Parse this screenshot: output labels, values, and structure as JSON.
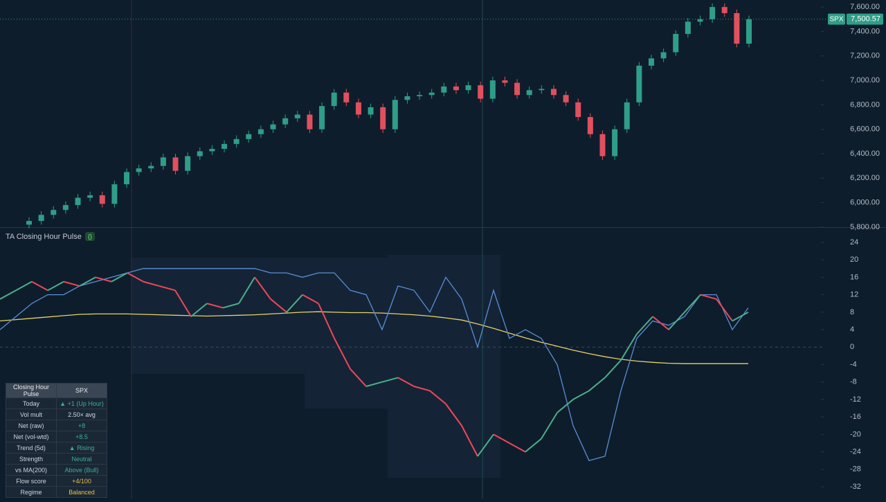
{
  "chart_data": [
    {
      "type": "candlestick",
      "symbol": "SPX",
      "last_price": {
        "value": 7500.57,
        "label": "7,500.57"
      },
      "up_color": "#2f9e88",
      "down_color": "#e0505e",
      "open": [
        5820,
        5850,
        5900,
        5940,
        5980,
        6040,
        6060,
        5990,
        6150,
        6250,
        6280,
        6300,
        6370,
        6260,
        6380,
        6420,
        6440,
        6480,
        6520,
        6560,
        6600,
        6640,
        6690,
        6720,
        6600,
        6790,
        6900,
        6820,
        6720,
        6780,
        6600,
        6840,
        6870,
        6880,
        6900,
        6950,
        6920,
        6960,
        6850,
        7000,
        6980,
        6880,
        6920,
        6930,
        6880,
        6820,
        6700,
        6560,
        6380,
        6600,
        6820,
        7120,
        7180,
        7230,
        7380,
        7480,
        7500,
        7600,
        7550,
        7300
      ],
      "high": [
        5880,
        5930,
        5970,
        6010,
        6070,
        6090,
        6090,
        6180,
        6280,
        6310,
        6330,
        6400,
        6400,
        6410,
        6450,
        6470,
        6510,
        6550,
        6590,
        6630,
        6670,
        6720,
        6750,
        6750,
        6820,
        6930,
        6930,
        6850,
        6810,
        6810,
        6870,
        6900,
        6910,
        6930,
        6980,
        6980,
        6990,
        6990,
        7030,
        7030,
        7010,
        6950,
        6960,
        6960,
        6910,
        6850,
        6730,
        6590,
        6630,
        6850,
        7150,
        7210,
        7260,
        7410,
        7510,
        7530,
        7630,
        7630,
        7580,
        7530
      ],
      "low": [
        5790,
        5820,
        5870,
        5910,
        5950,
        6010,
        5960,
        5960,
        6120,
        6220,
        6250,
        6270,
        6230,
        6230,
        6350,
        6390,
        6410,
        6450,
        6490,
        6530,
        6570,
        6610,
        6660,
        6570,
        6570,
        6760,
        6790,
        6690,
        6690,
        6570,
        6570,
        6810,
        6840,
        6850,
        6870,
        6890,
        6890,
        6820,
        6820,
        6950,
        6850,
        6850,
        6890,
        6850,
        6790,
        6670,
        6530,
        6350,
        6350,
        6570,
        6790,
        7090,
        7150,
        7200,
        7350,
        7450,
        7470,
        7520,
        7270,
        7270
      ],
      "close": [
        5850,
        5900,
        5940,
        5980,
        6040,
        6060,
        5990,
        6150,
        6250,
        6280,
        6300,
        6370,
        6260,
        6380,
        6420,
        6440,
        6480,
        6520,
        6560,
        6600,
        6640,
        6690,
        6720,
        6600,
        6790,
        6900,
        6820,
        6720,
        6780,
        6600,
        6840,
        6870,
        6880,
        6900,
        6950,
        6920,
        6960,
        6850,
        7000,
        6980,
        6880,
        6920,
        6930,
        6880,
        6820,
        6700,
        6560,
        6380,
        6600,
        6820,
        7120,
        7180,
        7230,
        7380,
        7480,
        7500,
        7600,
        7550,
        7300,
        7500
      ],
      "ylim": [
        5760,
        7680
      ],
      "yticks": [
        {
          "value": 5800,
          "label": "5,800.00"
        },
        {
          "value": 6000,
          "label": "6,000.00"
        },
        {
          "value": 6200,
          "label": "6,200.00"
        },
        {
          "value": 6400,
          "label": "6,400.00"
        },
        {
          "value": 6600,
          "label": "6,600.00"
        },
        {
          "value": 6800,
          "label": "6,800.00"
        },
        {
          "value": 7000,
          "label": "7,000.00"
        },
        {
          "value": 7200,
          "label": "7,200.00"
        },
        {
          "value": 7400,
          "label": "7,400.00"
        },
        {
          "value": 7600,
          "label": "7,600.00"
        }
      ]
    },
    {
      "type": "line",
      "title": "TA Closing Hour Pulse",
      "series": [
        {
          "color": "#e6d36a",
          "values": [
            6,
            6.3,
            6.6,
            6.9,
            7.2,
            7.5,
            7.6,
            7.6,
            7.6,
            7.5,
            7.4,
            7.3,
            7.2,
            7.1,
            7.2,
            7.3,
            7.4,
            7.6,
            7.8,
            8,
            8.1,
            8,
            7.9,
            7.9,
            7.8,
            7.6,
            7.4,
            7.1,
            6.7,
            6.2,
            5.3,
            4.3,
            3.2,
            2.1,
            1.1,
            0.2,
            -0.7,
            -1.5,
            -2.2,
            -2.8,
            -3.2,
            -3.5,
            -3.7,
            -3.8,
            -3.8,
            -3.8,
            -3.8,
            -3.8
          ]
        },
        {
          "color": "#5b8fd6",
          "values": [
            4,
            7,
            10,
            12,
            12,
            14,
            15,
            16,
            17,
            18,
            18,
            18,
            18,
            18,
            18,
            18,
            18,
            17,
            17,
            16,
            17,
            17,
            13,
            12,
            4,
            14,
            13,
            8,
            16,
            11,
            0,
            13,
            2,
            4,
            2,
            -4,
            -18,
            -26,
            -25,
            -10,
            2,
            6,
            5,
            7,
            12,
            12,
            4,
            9
          ]
        },
        {
          "color": "#4caf8a",
          "down_color": "#f0475a",
          "values": [
            11,
            13,
            15,
            13,
            15,
            14,
            16,
            15,
            17,
            15,
            14,
            13,
            7,
            10,
            9,
            10,
            16,
            11,
            8,
            12,
            10,
            2,
            -5,
            -9,
            -8,
            -7,
            -9,
            -10,
            -13,
            -18,
            -25,
            -20,
            -22,
            -24,
            -21,
            -15,
            -12,
            -10,
            -7,
            -3,
            3,
            7,
            4,
            8,
            12,
            11,
            6,
            8
          ]
        }
      ],
      "ylim": [
        -33.8,
        25.6
      ],
      "yticks": [
        24,
        20,
        16,
        12,
        8,
        4,
        0,
        -4,
        -8,
        -12,
        -16,
        -20,
        -24,
        -28,
        -32
      ]
    }
  ],
  "table": {
    "header": [
      "Closing Hour Pulse",
      "SPX"
    ],
    "rows": [
      {
        "label": "Today",
        "value": "▲ +1 (Up Hour)",
        "color": "#3fae98"
      },
      {
        "label": "Vol mult",
        "value": "2.50× avg",
        "color": "#d0d6dc"
      },
      {
        "label": "Net (raw)",
        "value": "+8",
        "color": "#3fae98"
      },
      {
        "label": "Net (vol-wtd)",
        "value": "+8.5",
        "color": "#3fae98"
      },
      {
        "label": "Trend (5d)",
        "value": "▲ Rising",
        "color": "#3fae98"
      },
      {
        "label": "Strength",
        "value": "Neutral",
        "color": "#3fae98"
      },
      {
        "label": "vs MA(200)",
        "value": "Above (Bull)",
        "color": "#3fae98"
      },
      {
        "label": "Flow score",
        "value": "+4/100",
        "color": "#e8c04a"
      },
      {
        "label": "Regime",
        "value": "Balanced",
        "color": "#e8c04a"
      }
    ]
  }
}
